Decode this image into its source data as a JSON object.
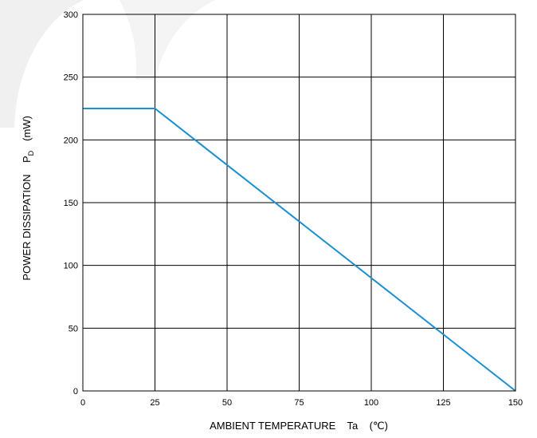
{
  "chart_data": {
    "type": "line",
    "title": "",
    "xlabel": "AMBIENT TEMPERATURE    Ta    (℃)",
    "ylabel": "POWER DISSIPATION    P",
    "ylabel_subscript": "D",
    "ylabel_unit": "(mW)",
    "xlim": [
      0,
      150
    ],
    "ylim": [
      0,
      300
    ],
    "xticks": [
      0,
      25,
      50,
      75,
      100,
      125,
      150
    ],
    "yticks": [
      0,
      50,
      100,
      150,
      200,
      250,
      300
    ],
    "grid": true,
    "series": [
      {
        "x": [
          0,
          25,
          150
        ],
        "y": [
          225,
          225,
          0
        ],
        "color": "#1a8fd1"
      }
    ]
  },
  "colors": {
    "line": "#1a8fd1",
    "grid": "#000000",
    "watermark": "#f0f0f0"
  }
}
